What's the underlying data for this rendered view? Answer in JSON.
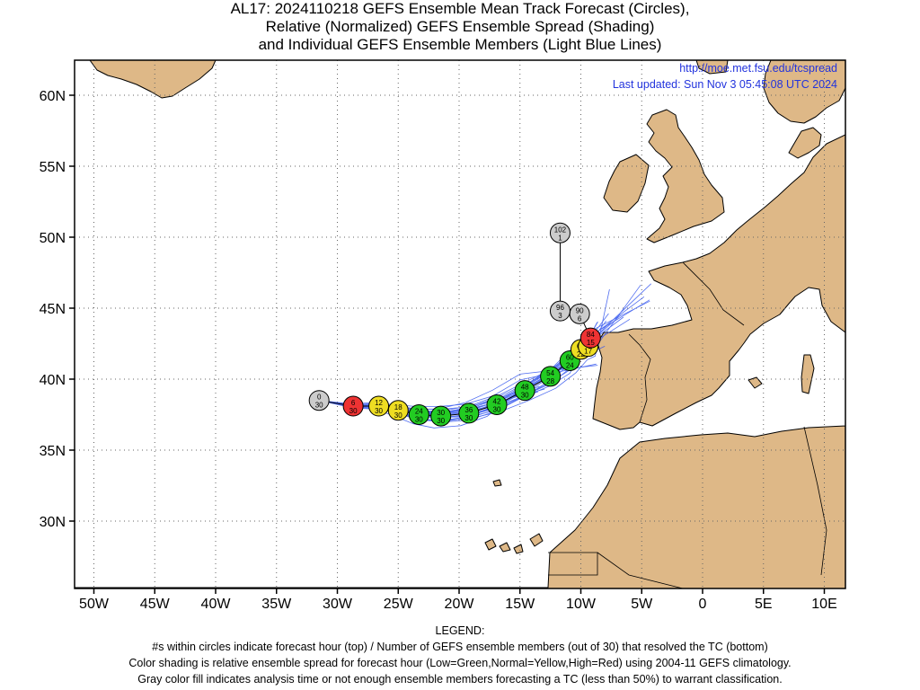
{
  "title": {
    "line1": "AL17: 2024110218 GEFS Ensemble Mean Track Forecast (Circles),",
    "line2": "Relative (Normalized) GEFS Ensemble Spread (Shading)",
    "line3": "and Individual GEFS Ensemble Members (Light Blue Lines)"
  },
  "credit": {
    "url": "http://moe.met.fsu.edu/tcspread",
    "updated": "Last updated: Sun Nov 3 05:45:08 UTC 2024"
  },
  "axes": {
    "x_ticks": [
      "50W",
      "45W",
      "40W",
      "35W",
      "30W",
      "25W",
      "20W",
      "15W",
      "10W",
      "5W",
      "0",
      "5E",
      "10E"
    ],
    "y_ticks": [
      "60N",
      "55N",
      "50N",
      "45N",
      "40N",
      "35N",
      "30N"
    ]
  },
  "legend": {
    "heading": "LEGEND:",
    "line1": "#s within circles indicate forecast hour (top) / Number of GEFS ensemble members (out of 30) that resolved the TC (bottom)",
    "line2": "Color shading is relative ensemble spread for forecast hour (Low=Green,Normal=Yellow,High=Red) using 2004-11 GEFS climatology.",
    "line3": "Gray color fill indicates analysis time or not enough ensemble members forecasting a TC (less than 50%) to warrant classification."
  },
  "colors": {
    "land": "#deb887",
    "ocean": "#ffffff",
    "member_lines": "#3355ee",
    "low": "#22cc22",
    "normal": "#eedd22",
    "high": "#ee3333",
    "gray": "#cccccc",
    "credit_text": "#2233dd"
  },
  "track": [
    {
      "hour": "0",
      "members": "30",
      "lon": -31.5,
      "lat": 38.5,
      "spread": "gray"
    },
    {
      "hour": "6",
      "members": "30",
      "lon": -28.7,
      "lat": 38.1,
      "spread": "high"
    },
    {
      "hour": "12",
      "members": "30",
      "lon": -26.6,
      "lat": 38.1,
      "spread": "normal"
    },
    {
      "hour": "18",
      "members": "30",
      "lon": -25.0,
      "lat": 37.8,
      "spread": "normal"
    },
    {
      "hour": "24",
      "members": "30",
      "lon": -23.3,
      "lat": 37.5,
      "spread": "low"
    },
    {
      "hour": "30",
      "members": "30",
      "lon": -21.5,
      "lat": 37.4,
      "spread": "low"
    },
    {
      "hour": "36",
      "members": "30",
      "lon": -19.2,
      "lat": 37.6,
      "spread": "low"
    },
    {
      "hour": "42",
      "members": "30",
      "lon": -16.9,
      "lat": 38.2,
      "spread": "low"
    },
    {
      "hour": "48",
      "members": "30",
      "lon": -14.6,
      "lat": 39.2,
      "spread": "low"
    },
    {
      "hour": "54",
      "members": "28",
      "lon": -12.5,
      "lat": 40.2,
      "spread": "low"
    },
    {
      "hour": "60",
      "members": "24",
      "lon": -10.9,
      "lat": 41.3,
      "spread": "low"
    },
    {
      "hour": "66",
      "members": "22",
      "lon": -10.0,
      "lat": 42.1,
      "spread": "normal"
    },
    {
      "hour": "72",
      "members": "17",
      "lon": -9.4,
      "lat": 42.3,
      "spread": "normal"
    },
    {
      "hour": "84",
      "members": "15",
      "lon": -9.2,
      "lat": 42.9,
      "spread": "high"
    },
    {
      "hour": "90",
      "members": "6",
      "lon": -10.1,
      "lat": 44.6,
      "spread": "gray"
    },
    {
      "hour": "96",
      "members": "3",
      "lon": -11.7,
      "lat": 44.8,
      "spread": "gray"
    },
    {
      "hour": "102",
      "members": "1",
      "lon": -11.7,
      "lat": 50.3,
      "spread": "gray"
    }
  ]
}
